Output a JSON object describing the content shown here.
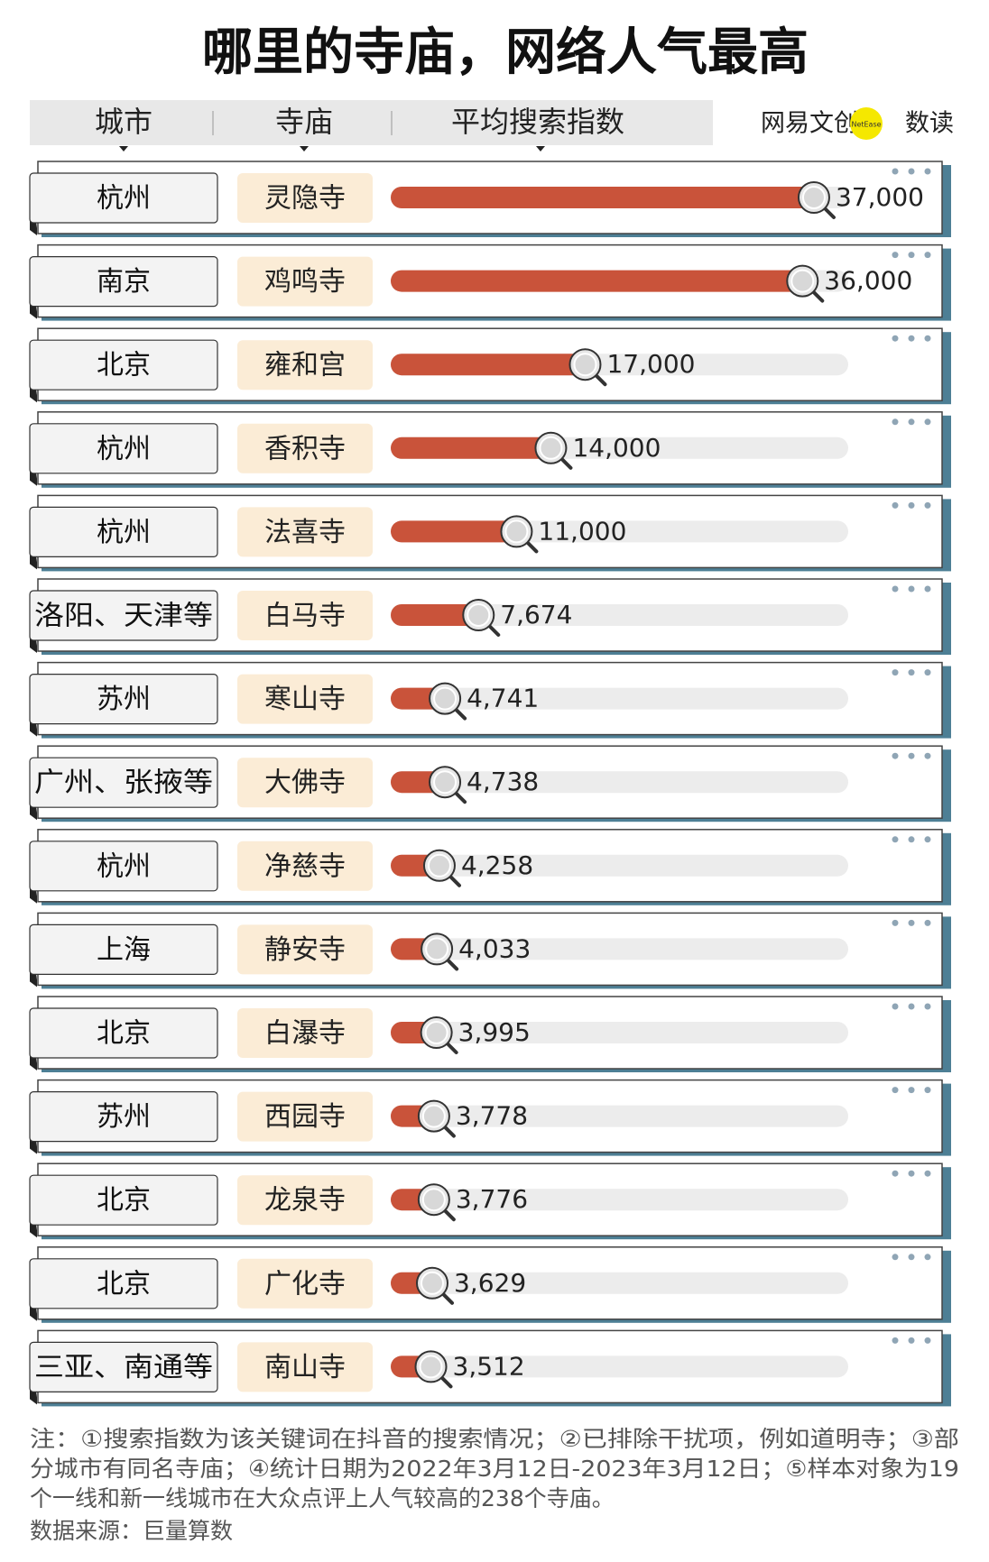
{
  "chart_data": {
    "type": "bar",
    "title": "哪里的寺庙，网络人气最高",
    "column_headers": [
      "城市",
      "寺庙",
      "平均搜索指数"
    ],
    "logo": {
      "brand": "网易文创",
      "badge": "NetEase",
      "sub": "数读"
    },
    "cities": [
      "杭州",
      "南京",
      "北京",
      "杭州",
      "杭州",
      "洛阳、天津等",
      "苏州",
      "广州、张掖等",
      "杭州",
      "上海",
      "北京",
      "苏州",
      "北京",
      "北京",
      "三亚、南通等"
    ],
    "categories": [
      "灵隐寺",
      "鸡鸣寺",
      "雍和宫",
      "香积寺",
      "法喜寺",
      "白马寺",
      "寒山寺",
      "大佛寺",
      "净慈寺",
      "静安寺",
      "白瀑寺",
      "西园寺",
      "龙泉寺",
      "广化寺",
      "南山寺"
    ],
    "values": [
      37000,
      36000,
      17000,
      14000,
      11000,
      7674,
      4741,
      4738,
      4258,
      4033,
      3995,
      3778,
      3776,
      3629,
      3512
    ],
    "value_labels": [
      "37,000",
      "36,000",
      "17,000",
      "14,000",
      "11,000",
      "7,674",
      "4,741",
      "4,738",
      "4,258",
      "4,033",
      "3,995",
      "3,778",
      "3,776",
      "3,629",
      "3,512"
    ],
    "color": "#c9533a",
    "xlim": [
      0,
      40000
    ],
    "notes": [
      "注：①搜索指数为该关键词在抖音的搜索情况；②已排除干扰项，例如道明寺；③部",
      "分城市有同名寺庙；④统计日期为2022年3月12日-2023年3月12日；⑤样本对象为19",
      "个一线和新一线城市在大众点评上人气较高的238个寺庙。"
    ],
    "source": "数据来源：巨量算数"
  }
}
